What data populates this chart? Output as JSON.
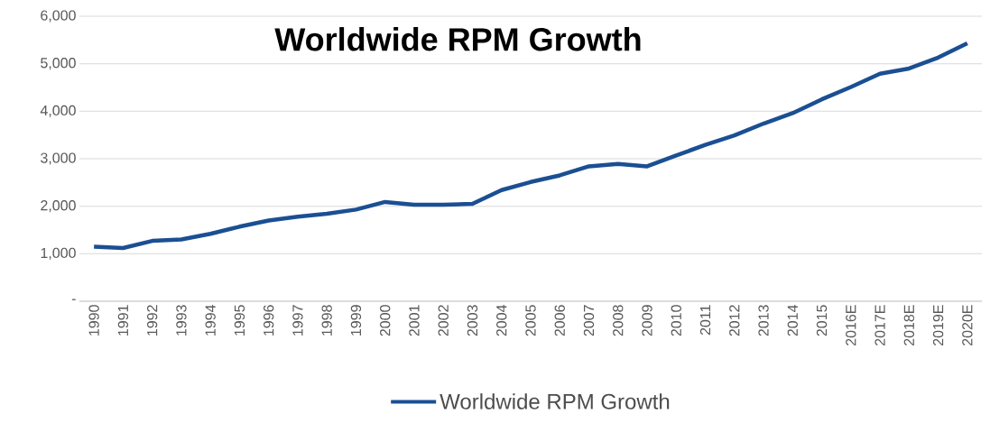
{
  "chart_data": {
    "type": "line",
    "title": "Worldwide RPM Growth",
    "categories": [
      "1990",
      "1991",
      "1992",
      "1993",
      "1994",
      "1995",
      "1996",
      "1997",
      "1998",
      "1999",
      "2000",
      "2001",
      "2002",
      "2003",
      "2004",
      "2005",
      "2006",
      "2007",
      "2008",
      "2009",
      "2010",
      "2011",
      "2012",
      "2013",
      "2014",
      "2015",
      "2016E",
      "2017E",
      "2018E",
      "2019E",
      "2020E"
    ],
    "series": [
      {
        "name": "Worldwide RPM Growth",
        "color": "#1b4f93",
        "values": [
          1150,
          1120,
          1270,
          1300,
          1420,
          1570,
          1700,
          1780,
          1840,
          1930,
          2090,
          2030,
          2030,
          2050,
          2340,
          2510,
          2650,
          2840,
          2890,
          2840,
          3070,
          3290,
          3490,
          3740,
          3960,
          4250,
          4510,
          4790,
          4900,
          5130,
          5430
        ]
      }
    ],
    "ylim": [
      0,
      6000
    ],
    "yticks": [
      {
        "value": 0,
        "label": "-"
      },
      {
        "value": 1000,
        "label": "1,000"
      },
      {
        "value": 2000,
        "label": "2,000"
      },
      {
        "value": 3000,
        "label": "3,000"
      },
      {
        "value": 4000,
        "label": "4,000"
      },
      {
        "value": 5000,
        "label": "5,000"
      },
      {
        "value": 6000,
        "label": "6,000"
      }
    ],
    "grid": "y",
    "legend": "bottom",
    "marker": "none",
    "line_style": "solid"
  }
}
